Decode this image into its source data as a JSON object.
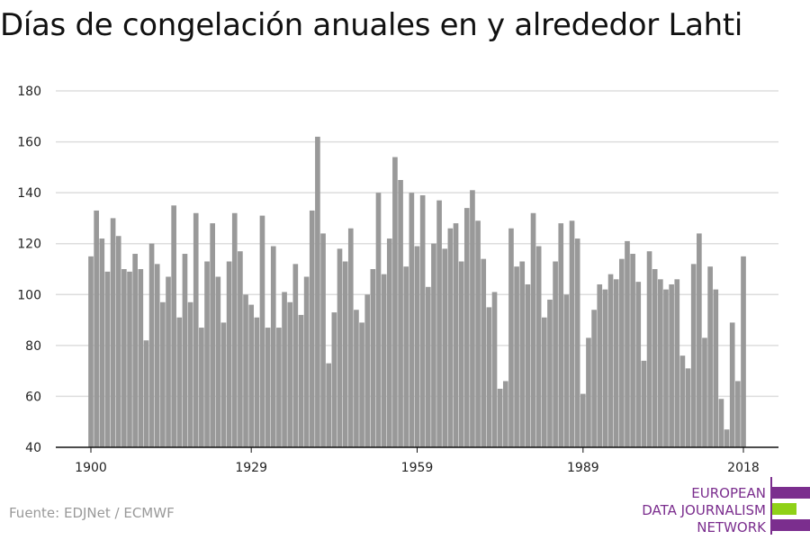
{
  "title": "Días de congelación anuales en y alrededor Lahti",
  "source": "Fuente: EDJNet / ECMWF",
  "logo": {
    "line1": "EUROPEAN",
    "line2": "DATA JOURNALISM",
    "line3": "NETWORK",
    "colors": {
      "purple": "#7b2e8e",
      "green": "#8fd118"
    }
  },
  "chart_data": {
    "type": "bar",
    "title": "Días de congelación anuales en y alrededor Lahti",
    "xlabel": "",
    "ylabel": "",
    "x_start": 1900,
    "x_end": 2018,
    "xticks": [
      1900,
      1929,
      1959,
      1989,
      2018
    ],
    "yticks": [
      40,
      60,
      80,
      100,
      120,
      140,
      160,
      180
    ],
    "ylim": [
      40,
      180
    ],
    "grid": true,
    "bar_color": "#999999",
    "values": [
      115,
      133,
      122,
      109,
      130,
      123,
      110,
      109,
      116,
      110,
      82,
      120,
      112,
      97,
      107,
      135,
      91,
      116,
      97,
      132,
      87,
      113,
      128,
      107,
      89,
      113,
      132,
      117,
      100,
      96,
      91,
      131,
      87,
      119,
      87,
      101,
      97,
      112,
      92,
      107,
      133,
      162,
      124,
      73,
      93,
      118,
      113,
      126,
      94,
      89,
      100,
      110,
      140,
      108,
      122,
      154,
      145,
      111,
      140,
      119,
      139,
      103,
      120,
      137,
      118,
      126,
      128,
      113,
      134,
      141,
      129,
      114,
      95,
      101,
      63,
      66,
      126,
      111,
      113,
      104,
      132,
      119,
      91,
      98,
      113,
      128,
      100,
      129,
      122,
      61,
      83,
      94,
      104,
      102,
      108,
      106,
      114,
      121,
      116,
      105,
      74,
      117,
      110,
      106,
      102,
      104,
      106,
      76,
      71,
      112,
      124,
      83,
      111,
      102,
      59,
      47,
      89,
      66,
      115
    ]
  }
}
